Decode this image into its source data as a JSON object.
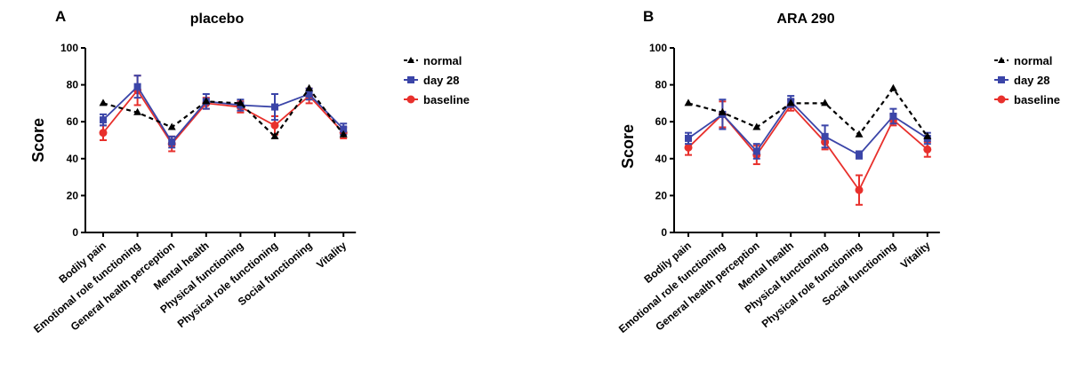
{
  "figure": {
    "panels": [
      {
        "letter": "A",
        "title": "placebo",
        "ylabel": "Score",
        "categories": [
          "Bodily pain",
          "Emotional role functioning",
          "General health perception",
          "Mental health",
          "Physical functioning",
          "Physical role functioning",
          "Social functioning",
          "Vitality"
        ],
        "yticks": [
          "0",
          "20",
          "40",
          "60",
          "80",
          "100"
        ],
        "legend": [
          "normal",
          "day 28",
          "baseline"
        ]
      },
      {
        "letter": "B",
        "title": "ARA 290",
        "ylabel": "Score",
        "categories": [
          "Bodily pain",
          "Emotional role functioning",
          "General health perception",
          "Mental health",
          "Physical functioning",
          "Physical role functioning",
          "Social functioning",
          "Vitality"
        ],
        "yticks": [
          "0",
          "20",
          "40",
          "60",
          "80",
          "100"
        ],
        "legend": [
          "normal",
          "day 28",
          "baseline"
        ]
      }
    ]
  },
  "colors": {
    "normal": "#000000",
    "day28": "#3b45a8",
    "baseline": "#e8302c"
  },
  "chart_data": [
    {
      "type": "line",
      "title": "placebo",
      "xlabel": "",
      "ylabel": "Score",
      "ylim": [
        0,
        100
      ],
      "grid": false,
      "legend_position": "top-right",
      "categories": [
        "Bodily pain",
        "Emotional role functioning",
        "General health perception",
        "Mental health",
        "Physical functioning",
        "Physical role functioning",
        "Social functioning",
        "Vitality"
      ],
      "series": [
        {
          "name": "normal",
          "style": "dashed",
          "marker": "triangle",
          "values": [
            70,
            65,
            57,
            71,
            70,
            52,
            78,
            53
          ],
          "errors": [
            0,
            0,
            0,
            0,
            0,
            0,
            0,
            0
          ]
        },
        {
          "name": "day 28",
          "style": "solid",
          "marker": "square",
          "values": [
            61,
            79,
            49,
            71,
            69,
            68,
            75,
            56
          ],
          "errors": [
            3,
            6,
            3,
            4,
            3,
            7,
            3,
            3
          ]
        },
        {
          "name": "baseline",
          "style": "solid",
          "marker": "circle",
          "values": [
            54,
            77,
            48,
            70,
            68,
            58,
            74,
            54
          ],
          "errors": [
            4,
            8,
            4,
            3,
            3,
            5,
            4,
            3
          ]
        }
      ]
    },
    {
      "type": "line",
      "title": "ARA 290",
      "xlabel": "",
      "ylabel": "Score",
      "ylim": [
        0,
        100
      ],
      "grid": false,
      "legend_position": "top-right",
      "categories": [
        "Bodily pain",
        "Emotional role functioning",
        "General health perception",
        "Mental health",
        "Physical functioning",
        "Physical role functioning",
        "Social functioning",
        "Vitality"
      ],
      "series": [
        {
          "name": "normal",
          "style": "dashed",
          "marker": "triangle",
          "values": [
            70,
            65,
            57,
            70,
            70,
            53,
            78,
            52
          ],
          "errors": [
            0,
            0,
            0,
            0,
            0,
            0,
            0,
            0
          ]
        },
        {
          "name": "day 28",
          "style": "solid",
          "marker": "square",
          "values": [
            51,
            64,
            44,
            71,
            52,
            42,
            63,
            51
          ],
          "errors": [
            3,
            8,
            4,
            3,
            6,
            2,
            4,
            3
          ]
        },
        {
          "name": "baseline",
          "style": "solid",
          "marker": "circle",
          "values": [
            46,
            64,
            42,
            69,
            49,
            23,
            61,
            45
          ],
          "errors": [
            4,
            7,
            5,
            3,
            4,
            8,
            3,
            4
          ]
        }
      ]
    }
  ]
}
